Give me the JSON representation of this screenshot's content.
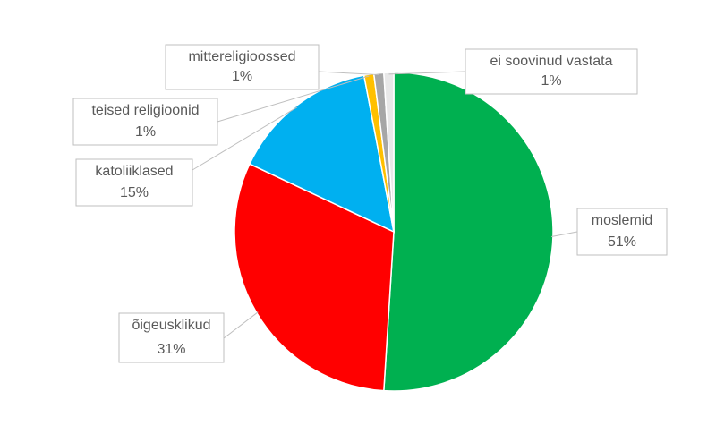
{
  "chart_data": {
    "type": "pie",
    "categories": [
      "moslemid",
      "õigeusklikud",
      "katoliiklased",
      "teised religioonid",
      "mittereligioossed",
      "ei soovinud vastata"
    ],
    "values": [
      51,
      31,
      15,
      1,
      1,
      1
    ],
    "value_labels": [
      "51%",
      "31%",
      "15%",
      "1%",
      "1%",
      "1%"
    ],
    "colors": [
      "#00b050",
      "#ff0000",
      "#00b0f0",
      "#ffc000",
      "#a6a6a6",
      "#e8e8e8"
    ]
  }
}
